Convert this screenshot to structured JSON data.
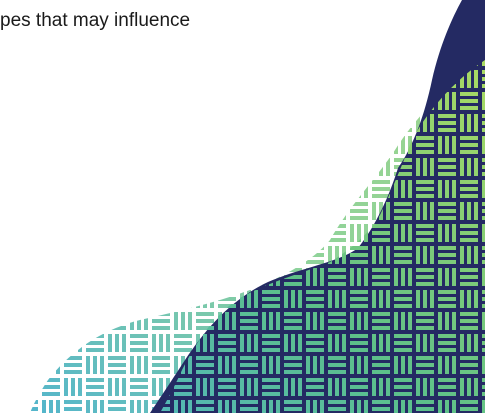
{
  "slide": {
    "body_text": "pes that may influence"
  },
  "decoration": {
    "colors": {
      "navy": "#242a63",
      "teal": "#4fb3cf",
      "green": "#5cc08a",
      "lime": "#b7df5c",
      "light_green": "#8fd39a",
      "pale_blue": "#a9d9ee"
    },
    "pattern": "basket-weave"
  }
}
